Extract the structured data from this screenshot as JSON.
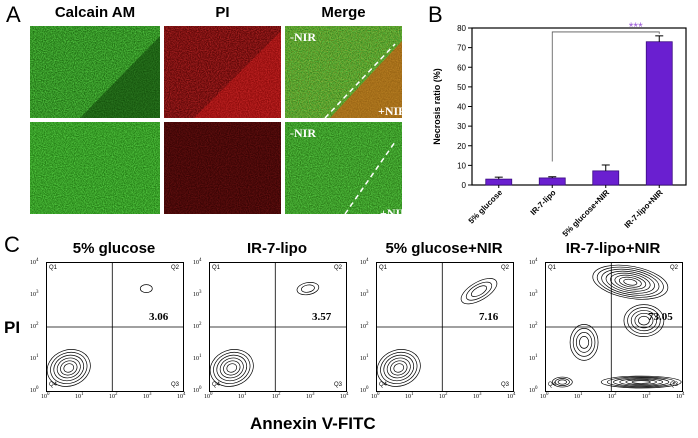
{
  "panel_a": {
    "letter": "A",
    "columns": [
      "Calcain AM",
      "PI",
      "Merge"
    ],
    "nir_labels": {
      "minus": "-NIR",
      "plus": "+NIR"
    }
  },
  "panel_b": {
    "letter": "B"
  },
  "panel_c": {
    "letter": "C",
    "y_axis": "PI",
    "x_axis": "Annexin V-FITC",
    "quadrants": [
      "Q1",
      "Q2",
      "Q3",
      "Q4"
    ],
    "plots": [
      {
        "title": "5% glucose",
        "value": "3.06"
      },
      {
        "title": "IR-7-lipo",
        "value": "3.57"
      },
      {
        "title": "5% glucose+NIR",
        "value": "7.16"
      },
      {
        "title": "IR-7-lipo+NIR",
        "value": "73.05"
      }
    ],
    "tick_exponents": [
      "0",
      "1",
      "2",
      "3",
      "4"
    ]
  },
  "colors": {
    "green": "#2f8f1d",
    "red": "#8e0f0f",
    "bar": "#6a1fd0",
    "sig": "#9a58d8"
  },
  "chart_data": {
    "type": "bar",
    "categories": [
      "5% glucose",
      "IR-7-lipo",
      "5% glucose+NIR",
      "IR-7-lipo+NIR"
    ],
    "values": [
      3.0,
      3.6,
      7.2,
      73.0
    ],
    "errors": [
      1.0,
      0.6,
      3.0,
      3.0
    ],
    "ylabel": "Necrosis ratio (%)",
    "ylim": [
      0,
      80
    ],
    "yticks": [
      0,
      10,
      20,
      30,
      40,
      50,
      60,
      70,
      80
    ],
    "significance": "***"
  }
}
